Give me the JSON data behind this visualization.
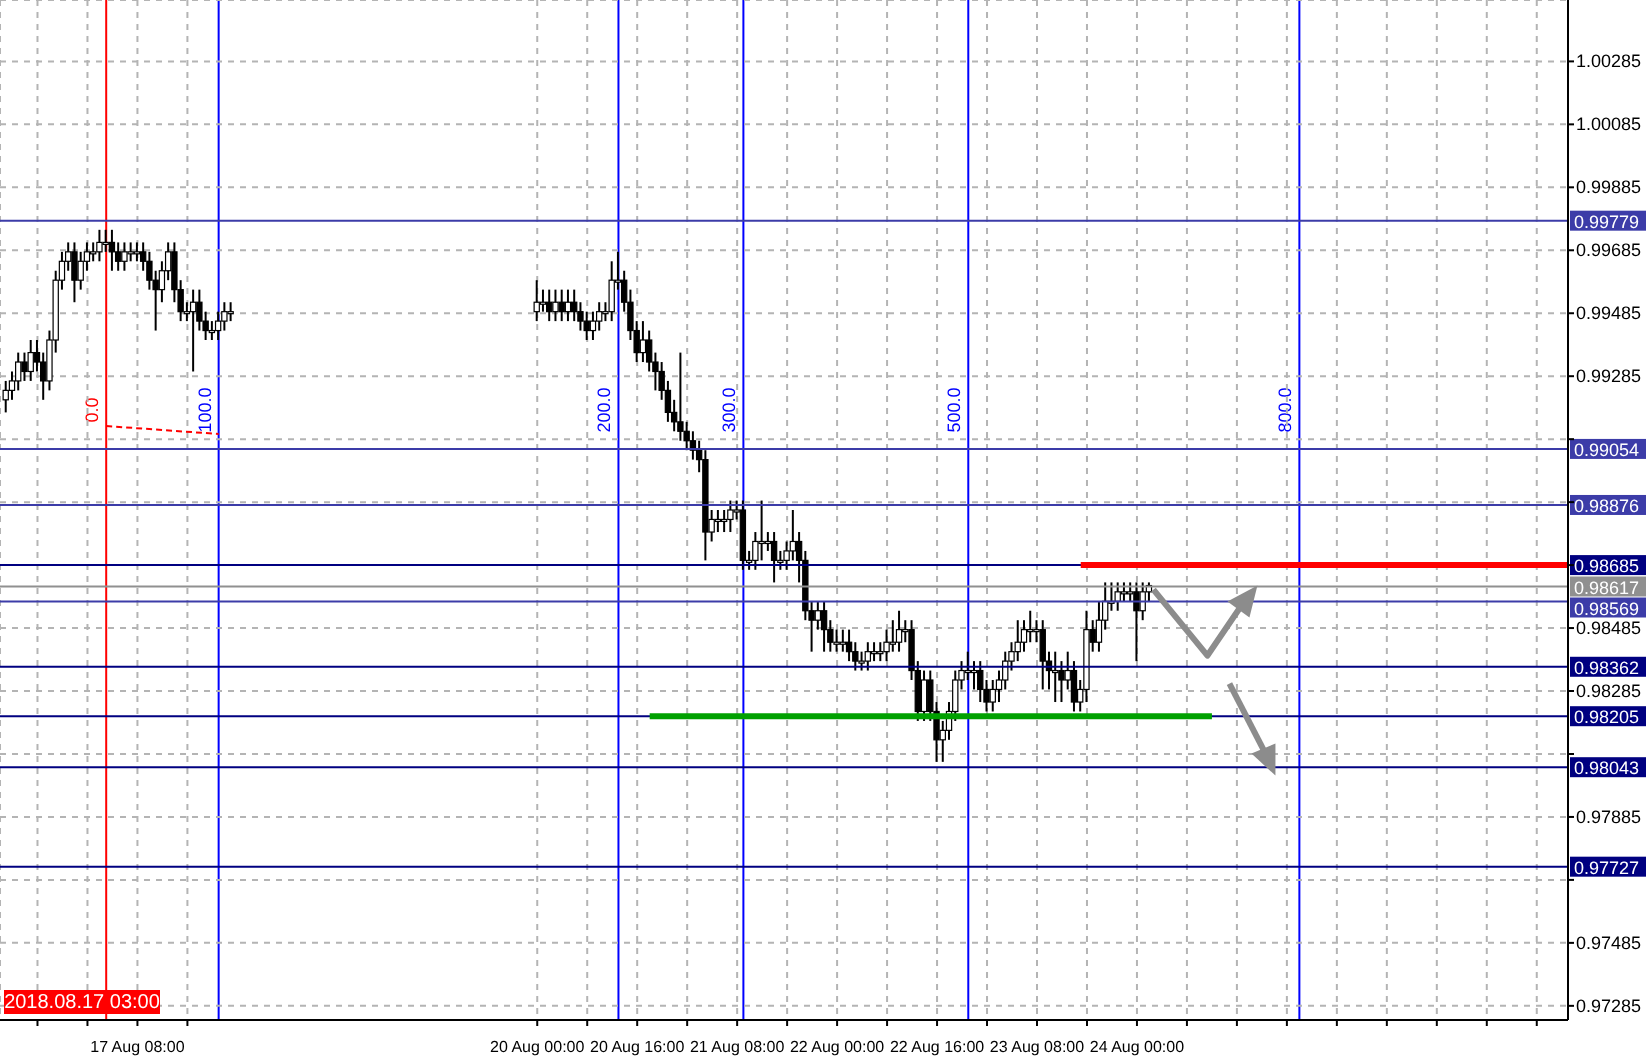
{
  "chart_data": {
    "type": "candlestick",
    "x": [
      "2018-08-16T11:00",
      "2018-08-16T12:00",
      "2018-08-16T13:00",
      "2018-08-16T14:00",
      "2018-08-16T15:00",
      "2018-08-16T16:00",
      "2018-08-16T17:00",
      "2018-08-16T18:00",
      "2018-08-16T19:00",
      "2018-08-16T20:00",
      "2018-08-16T21:00",
      "2018-08-16T22:00",
      "2018-08-16T23:00",
      "2018-08-17T00:00",
      "2018-08-17T01:00",
      "2018-08-17T02:00",
      "2018-08-17T03:00",
      "2018-08-17T04:00",
      "2018-08-17T05:00",
      "2018-08-17T06:00",
      "2018-08-17T07:00",
      "2018-08-17T08:00",
      "2018-08-17T09:00",
      "2018-08-17T10:00",
      "2018-08-17T11:00",
      "2018-08-17T12:00",
      "2018-08-17T13:00",
      "2018-08-17T14:00",
      "2018-08-17T15:00",
      "2018-08-17T16:00",
      "2018-08-17T17:00",
      "2018-08-17T18:00",
      "2018-08-17T19:00",
      "2018-08-17T20:00",
      "2018-08-17T21:00",
      "2018-08-17T22:00",
      "2018-08-17T23:00",
      "2018-08-20T00:00",
      "2018-08-20T01:00",
      "2018-08-20T02:00",
      "2018-08-20T03:00",
      "2018-08-20T04:00",
      "2018-08-20T05:00",
      "2018-08-20T06:00",
      "2018-08-20T07:00",
      "2018-08-20T08:00",
      "2018-08-20T09:00",
      "2018-08-20T10:00",
      "2018-08-20T11:00",
      "2018-08-20T12:00",
      "2018-08-20T13:00",
      "2018-08-20T14:00",
      "2018-08-20T15:00",
      "2018-08-20T16:00",
      "2018-08-20T17:00",
      "2018-08-20T18:00",
      "2018-08-20T19:00",
      "2018-08-20T20:00",
      "2018-08-20T21:00",
      "2018-08-20T22:00",
      "2018-08-20T23:00",
      "2018-08-21T00:00",
      "2018-08-21T01:00",
      "2018-08-21T02:00",
      "2018-08-21T03:00",
      "2018-08-21T04:00",
      "2018-08-21T05:00",
      "2018-08-21T06:00",
      "2018-08-21T07:00",
      "2018-08-21T08:00",
      "2018-08-21T09:00",
      "2018-08-21T10:00",
      "2018-08-21T11:00",
      "2018-08-21T12:00",
      "2018-08-21T13:00",
      "2018-08-21T14:00",
      "2018-08-21T15:00",
      "2018-08-21T16:00",
      "2018-08-21T17:00",
      "2018-08-21T18:00",
      "2018-08-21T19:00",
      "2018-08-21T20:00",
      "2018-08-21T21:00",
      "2018-08-21T22:00",
      "2018-08-21T23:00",
      "2018-08-22T00:00",
      "2018-08-22T01:00",
      "2018-08-22T02:00",
      "2018-08-22T03:00",
      "2018-08-22T04:00",
      "2018-08-22T05:00",
      "2018-08-22T06:00",
      "2018-08-22T07:00",
      "2018-08-22T08:00",
      "2018-08-22T09:00",
      "2018-08-22T10:00",
      "2018-08-22T11:00",
      "2018-08-22T12:00",
      "2018-08-22T13:00",
      "2018-08-22T14:00",
      "2018-08-22T15:00",
      "2018-08-22T16:00",
      "2018-08-22T17:00",
      "2018-08-22T18:00",
      "2018-08-22T19:00",
      "2018-08-22T20:00",
      "2018-08-22T21:00",
      "2018-08-22T22:00",
      "2018-08-22T23:00",
      "2018-08-23T00:00",
      "2018-08-23T01:00",
      "2018-08-23T02:00",
      "2018-08-23T03:00",
      "2018-08-23T04:00",
      "2018-08-23T05:00",
      "2018-08-23T06:00",
      "2018-08-23T07:00",
      "2018-08-23T08:00",
      "2018-08-23T09:00",
      "2018-08-23T10:00",
      "2018-08-23T11:00",
      "2018-08-23T12:00",
      "2018-08-23T13:00",
      "2018-08-23T14:00",
      "2018-08-23T15:00",
      "2018-08-23T16:00",
      "2018-08-23T17:00",
      "2018-08-23T18:00",
      "2018-08-23T19:00",
      "2018-08-23T20:00",
      "2018-08-23T21:00",
      "2018-08-23T22:00",
      "2018-08-23T23:00",
      "2018-08-24T00:00",
      "2018-08-24T01:00",
      "2018-08-24T02:00"
    ],
    "ohlc": [
      [
        0.9921,
        0.9927,
        0.9917,
        0.9924
      ],
      [
        0.9924,
        0.993,
        0.9921,
        0.9927
      ],
      [
        0.9927,
        0.9936,
        0.9924,
        0.9933
      ],
      [
        0.9933,
        0.9936,
        0.9927,
        0.993
      ],
      [
        0.993,
        0.994,
        0.9927,
        0.9936
      ],
      [
        0.9936,
        0.994,
        0.993,
        0.9933
      ],
      [
        0.9933,
        0.9936,
        0.9921,
        0.9927
      ],
      [
        0.9927,
        0.9943,
        0.9924,
        0.994
      ],
      [
        0.994,
        0.9962,
        0.9936,
        0.9959
      ],
      [
        0.9959,
        0.9968,
        0.9956,
        0.9965
      ],
      [
        0.9965,
        0.9971,
        0.9962,
        0.9968
      ],
      [
        0.9968,
        0.9971,
        0.9952,
        0.9959
      ],
      [
        0.9959,
        0.9968,
        0.9956,
        0.9965
      ],
      [
        0.9965,
        0.9971,
        0.9962,
        0.9968
      ],
      [
        0.9968,
        0.9971,
        0.9965,
        0.9968
      ],
      [
        0.9968,
        0.9975,
        0.9965,
        0.9971
      ],
      [
        0.9971,
        0.9975,
        0.9968,
        0.9971
      ],
      [
        0.9971,
        0.9975,
        0.9962,
        0.9968
      ],
      [
        0.9968,
        0.9971,
        0.9962,
        0.9965
      ],
      [
        0.9965,
        0.9971,
        0.9962,
        0.9968
      ],
      [
        0.9968,
        0.9971,
        0.9965,
        0.9968
      ],
      [
        0.9968,
        0.9971,
        0.9965,
        0.9968
      ],
      [
        0.9968,
        0.9971,
        0.9962,
        0.9965
      ],
      [
        0.9965,
        0.9968,
        0.9956,
        0.9959
      ],
      [
        0.9959,
        0.9962,
        0.9943,
        0.9956
      ],
      [
        0.9956,
        0.9965,
        0.9952,
        0.9962
      ],
      [
        0.9962,
        0.9971,
        0.9959,
        0.9968
      ],
      [
        0.9968,
        0.9971,
        0.9952,
        0.9956
      ],
      [
        0.9956,
        0.9959,
        0.9946,
        0.9949
      ],
      [
        0.9949,
        0.9952,
        0.9946,
        0.9949
      ],
      [
        0.9949,
        0.9956,
        0.993,
        0.9952
      ],
      [
        0.9952,
        0.9956,
        0.9943,
        0.9946
      ],
      [
        0.9946,
        0.9949,
        0.994,
        0.9943
      ],
      [
        0.9943,
        0.9946,
        0.994,
        0.9943
      ],
      [
        0.9943,
        0.9949,
        0.994,
        0.9946
      ],
      [
        0.9946,
        0.9952,
        0.9943,
        0.9949
      ],
      [
        0.9949,
        0.9952,
        0.9946,
        0.9949
      ],
      [
        0.9949,
        0.9959,
        0.9946,
        0.9952
      ],
      [
        0.9952,
        0.9956,
        0.9949,
        0.9952
      ],
      [
        0.9952,
        0.9956,
        0.9946,
        0.9949
      ],
      [
        0.9949,
        0.9956,
        0.9946,
        0.9952
      ],
      [
        0.9952,
        0.9956,
        0.9946,
        0.9949
      ],
      [
        0.9949,
        0.9956,
        0.9946,
        0.9952
      ],
      [
        0.9952,
        0.9956,
        0.9946,
        0.9949
      ],
      [
        0.9949,
        0.9952,
        0.9943,
        0.9946
      ],
      [
        0.9946,
        0.9949,
        0.994,
        0.9943
      ],
      [
        0.9943,
        0.9949,
        0.994,
        0.9946
      ],
      [
        0.9946,
        0.9952,
        0.9943,
        0.9949
      ],
      [
        0.9949,
        0.9952,
        0.9946,
        0.9949
      ],
      [
        0.9949,
        0.9965,
        0.9946,
        0.9959
      ],
      [
        0.9959,
        0.9968,
        0.9956,
        0.9959
      ],
      [
        0.9959,
        0.9962,
        0.9949,
        0.9952
      ],
      [
        0.9952,
        0.9956,
        0.994,
        0.9943
      ],
      [
        0.9943,
        0.9946,
        0.9933,
        0.9936
      ],
      [
        0.9936,
        0.9946,
        0.9933,
        0.994
      ],
      [
        0.994,
        0.9943,
        0.993,
        0.9933
      ],
      [
        0.9933,
        0.9936,
        0.9924,
        0.993
      ],
      [
        0.993,
        0.9933,
        0.9921,
        0.9924
      ],
      [
        0.9924,
        0.9927,
        0.9914,
        0.9917
      ],
      [
        0.9917,
        0.9921,
        0.9911,
        0.9914
      ],
      [
        0.9914,
        0.9936,
        0.9908,
        0.9911
      ],
      [
        0.9911,
        0.9914,
        0.9905,
        0.9908
      ],
      [
        0.9908,
        0.9911,
        0.9902,
        0.9905
      ],
      [
        0.9905,
        0.9908,
        0.9898,
        0.9902
      ],
      [
        0.9902,
        0.9905,
        0.987,
        0.9879
      ],
      [
        0.9879,
        0.9886,
        0.9876,
        0.9883
      ],
      [
        0.9883,
        0.9886,
        0.9879,
        0.9883
      ],
      [
        0.9883,
        0.9886,
        0.9879,
        0.9883
      ],
      [
        0.9883,
        0.9889,
        0.9879,
        0.9886
      ],
      [
        0.9886,
        0.9889,
        0.9883,
        0.9886
      ],
      [
        0.9886,
        0.9889,
        0.9867,
        0.987
      ],
      [
        0.987,
        0.9873,
        0.9867,
        0.987
      ],
      [
        0.987,
        0.9879,
        0.9867,
        0.9876
      ],
      [
        0.9876,
        0.9889,
        0.987,
        0.9876
      ],
      [
        0.9876,
        0.9879,
        0.9873,
        0.9876
      ],
      [
        0.9876,
        0.9879,
        0.9863,
        0.987
      ],
      [
        0.987,
        0.9873,
        0.9867,
        0.987
      ],
      [
        0.987,
        0.9876,
        0.9867,
        0.9873
      ],
      [
        0.9873,
        0.9886,
        0.987,
        0.9876
      ],
      [
        0.9876,
        0.9879,
        0.9863,
        0.987
      ],
      [
        0.987,
        0.9873,
        0.9851,
        0.9854
      ],
      [
        0.9854,
        0.9857,
        0.9841,
        0.9851
      ],
      [
        0.9851,
        0.9857,
        0.9848,
        0.9854
      ],
      [
        0.9854,
        0.9857,
        0.9841,
        0.9848
      ],
      [
        0.9848,
        0.9851,
        0.9841,
        0.9844
      ],
      [
        0.9844,
        0.9848,
        0.9841,
        0.9844
      ],
      [
        0.9844,
        0.9848,
        0.9841,
        0.9844
      ],
      [
        0.9844,
        0.9848,
        0.9838,
        0.9841
      ],
      [
        0.9841,
        0.9844,
        0.9835,
        0.9838
      ],
      [
        0.9838,
        0.9841,
        0.9835,
        0.9838
      ],
      [
        0.9838,
        0.9844,
        0.9835,
        0.9841
      ],
      [
        0.9841,
        0.9844,
        0.9838,
        0.9841
      ],
      [
        0.9841,
        0.9844,
        0.9838,
        0.9841
      ],
      [
        0.9841,
        0.9848,
        0.9838,
        0.9844
      ],
      [
        0.9844,
        0.9851,
        0.9841,
        0.9844
      ],
      [
        0.9844,
        0.9854,
        0.9841,
        0.9848
      ],
      [
        0.9848,
        0.9851,
        0.9844,
        0.9848
      ],
      [
        0.9848,
        0.9851,
        0.9832,
        0.9835
      ],
      [
        0.9835,
        0.9838,
        0.9819,
        0.9822
      ],
      [
        0.9822,
        0.9835,
        0.9819,
        0.9832
      ],
      [
        0.9832,
        0.9835,
        0.9819,
        0.9822
      ],
      [
        0.9822,
        0.9825,
        0.9806,
        0.9813
      ],
      [
        0.9813,
        0.9819,
        0.9806,
        0.9816
      ],
      [
        0.9816,
        0.9825,
        0.9813,
        0.9822
      ],
      [
        0.9822,
        0.9835,
        0.9819,
        0.9832
      ],
      [
        0.9832,
        0.9838,
        0.9829,
        0.9835
      ],
      [
        0.9835,
        0.9841,
        0.9832,
        0.9835
      ],
      [
        0.9835,
        0.9838,
        0.9829,
        0.9835
      ],
      [
        0.9835,
        0.9838,
        0.9825,
        0.9829
      ],
      [
        0.9829,
        0.9832,
        0.9822,
        0.9825
      ],
      [
        0.9825,
        0.9832,
        0.9822,
        0.9829
      ],
      [
        0.9829,
        0.9835,
        0.9825,
        0.9832
      ],
      [
        0.9832,
        0.9841,
        0.9829,
        0.9838
      ],
      [
        0.9838,
        0.9844,
        0.9835,
        0.9841
      ],
      [
        0.9841,
        0.9851,
        0.9838,
        0.9844
      ],
      [
        0.9844,
        0.9851,
        0.9841,
        0.9848
      ],
      [
        0.9848,
        0.9854,
        0.9844,
        0.9848
      ],
      [
        0.9848,
        0.9851,
        0.9844,
        0.9848
      ],
      [
        0.9848,
        0.9851,
        0.9829,
        0.9838
      ],
      [
        0.9838,
        0.9841,
        0.9829,
        0.9835
      ],
      [
        0.9835,
        0.9841,
        0.9825,
        0.9835
      ],
      [
        0.9835,
        0.9838,
        0.9825,
        0.9832
      ],
      [
        0.9832,
        0.9841,
        0.9829,
        0.9835
      ],
      [
        0.9835,
        0.9838,
        0.9822,
        0.9825
      ],
      [
        0.9825,
        0.9832,
        0.9822,
        0.9829
      ],
      [
        0.9829,
        0.9854,
        0.9825,
        0.9848
      ],
      [
        0.9848,
        0.9851,
        0.9841,
        0.9844
      ],
      [
        0.9844,
        0.9857,
        0.9841,
        0.9851
      ],
      [
        0.9851,
        0.9863,
        0.9848,
        0.9857
      ],
      [
        0.9857,
        0.9863,
        0.9854,
        0.9857
      ],
      [
        0.9857,
        0.9863,
        0.9854,
        0.986
      ],
      [
        0.986,
        0.9863,
        0.9857,
        0.986
      ],
      [
        0.986,
        0.9863,
        0.9857,
        0.986
      ],
      [
        0.986,
        0.9863,
        0.9838,
        0.9854
      ],
      [
        0.9854,
        0.9863,
        0.9851,
        0.986
      ],
      [
        0.986,
        0.9863,
        0.9857,
        0.9862
      ]
    ],
    "series": [
      {
        "type": "line",
        "color": "#ff0000",
        "x": [
          "2018-08-23T15:00",
          "2018-08-26T21:00"
        ],
        "values": [
          0.98685,
          0.98685
        ]
      },
      {
        "type": "line",
        "color": "#00a000",
        "x": [
          "2018-08-20T18:00",
          "2018-08-24T12:00"
        ],
        "values": [
          0.98205,
          0.98205
        ]
      }
    ],
    "marker": "none",
    "xlim": [
      "2018-08-16T10:00",
      "2018-08-26T21:00"
    ],
    "xticks": [
      {
        "value": "2018-08-16T16:00",
        "label": null
      },
      {
        "value": "2018-08-17T00:00",
        "label": null
      },
      {
        "value": "2018-08-17T08:00",
        "label": "17 Aug 08:00"
      },
      {
        "value": "2018-08-17T16:00",
        "label": null
      },
      {
        "value": "2018-08-20T00:00",
        "label": "20 Aug 00:00"
      },
      {
        "value": "2018-08-20T08:00",
        "label": null
      },
      {
        "value": "2018-08-20T16:00",
        "label": "20 Aug 16:00"
      },
      {
        "value": "2018-08-21T00:00",
        "label": null
      },
      {
        "value": "2018-08-21T08:00",
        "label": "21 Aug 08:00"
      },
      {
        "value": "2018-08-21T16:00",
        "label": null
      },
      {
        "value": "2018-08-22T00:00",
        "label": "22 Aug 00:00"
      },
      {
        "value": "2018-08-22T08:00",
        "label": null
      },
      {
        "value": "2018-08-22T16:00",
        "label": "22 Aug 16:00"
      },
      {
        "value": "2018-08-23T00:00",
        "label": null
      },
      {
        "value": "2018-08-23T08:00",
        "label": "23 Aug 08:00"
      },
      {
        "value": "2018-08-23T16:00",
        "label": null
      },
      {
        "value": "2018-08-24T00:00",
        "label": "24 Aug 00:00"
      },
      {
        "value": "2018-08-24T08:00",
        "label": null
      },
      {
        "value": "2018-08-24T16:00",
        "label": null
      },
      {
        "value": "2018-08-25T00:00",
        "label": null
      },
      {
        "value": "2018-08-25T08:00",
        "label": null
      },
      {
        "value": "2018-08-25T16:00",
        "label": null
      },
      {
        "value": "2018-08-26T00:00",
        "label": null
      },
      {
        "value": "2018-08-26T08:00",
        "label": null
      },
      {
        "value": "2018-08-26T16:00",
        "label": null
      }
    ],
    "ylim": [
      0.9724,
      1.0048
    ],
    "yticks": [
      1.00285,
      1.00085,
      0.99885,
      0.99685,
      0.99485,
      0.99285,
      {
        "value": 0.99085,
        "label": null
      },
      {
        "value": 0.98885,
        "label": null
      },
      {
        "value": 0.98685,
        "label": null
      },
      0.98485,
      0.98285,
      {
        "value": 0.98085,
        "label": null
      },
      0.97885,
      {
        "value": 0.97685,
        "label": null
      },
      0.97485,
      0.97285
    ],
    "grid": true,
    "ref_lines": [
      {
        "axis": "y",
        "value": 0.99779,
        "label": "0.99779",
        "color": "#3c3ca8"
      },
      {
        "axis": "y",
        "value": 0.99054,
        "label": "0.99054",
        "color": "#3c3ca8"
      },
      {
        "axis": "y",
        "value": 0.98876,
        "label": "0.98876",
        "color": "#3c3ca8"
      },
      {
        "axis": "y",
        "value": 0.98685,
        "label": "0.98685",
        "color": "#000080"
      },
      {
        "axis": "y",
        "value": 0.98617,
        "label": "0.98617",
        "color": "#909090"
      },
      {
        "axis": "y",
        "value": 0.98569,
        "label": "0.98569",
        "color": "#3c3ca8"
      },
      {
        "axis": "y",
        "value": 0.98362,
        "label": "0.98362",
        "color": "#000080"
      },
      {
        "axis": "y",
        "value": 0.98205,
        "label": "0.98205",
        "color": "#000080"
      },
      {
        "axis": "y",
        "value": 0.98043,
        "label": "0.98043",
        "color": "#000080"
      },
      {
        "axis": "y",
        "value": 0.97727,
        "label": "0.97727",
        "color": "#000080"
      },
      {
        "axis": "x",
        "value": "2018-08-17T03:00",
        "label": "0.0",
        "color": "#ff0000"
      },
      {
        "axis": "x",
        "value": "2018-08-17T21:00",
        "label": "100.0",
        "color": "#0000ff"
      },
      {
        "axis": "x",
        "value": "2018-08-20T13:00",
        "label": "200.0",
        "color": "#0000ff"
      },
      {
        "axis": "x",
        "value": "2018-08-21T09:00",
        "label": "300.0",
        "color": "#0000ff"
      },
      {
        "axis": "x",
        "value": "2018-08-22T21:00",
        "label": "500.0",
        "color": "#0000ff"
      },
      {
        "axis": "x",
        "value": "2018-08-25T02:00",
        "label": "800.0",
        "color": "#0000ff"
      }
    ],
    "annotations": [
      "2018.08.17 03:00"
    ]
  }
}
